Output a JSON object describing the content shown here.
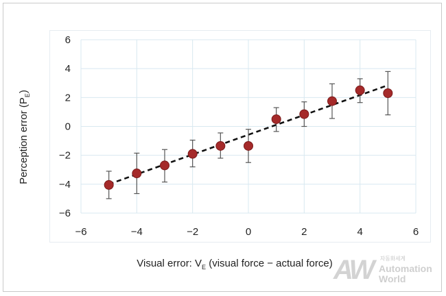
{
  "chart_data": {
    "type": "scatter",
    "xlabel": {
      "main": "Visual error: V",
      "sub": "E",
      "rest": " (visual force − actual force)"
    },
    "ylabel": {
      "main": "Perception error (P",
      "sub": "E",
      "rest": ")"
    },
    "xlim": [
      -6,
      6
    ],
    "ylim": [
      -6,
      6
    ],
    "x_ticks": [
      -6,
      -4,
      -2,
      0,
      2,
      4,
      6
    ],
    "y_ticks": [
      -6,
      -4,
      -2,
      0,
      2,
      4,
      6
    ],
    "x_tick_labels": [
      "−6",
      "−4",
      "−2",
      "0",
      "2",
      "4",
      "6"
    ],
    "y_tick_labels": [
      "−6",
      "−4",
      "−2",
      "0",
      "2",
      "4",
      "6"
    ],
    "grid": true,
    "series": [
      {
        "x": [
          -5,
          -4,
          -3,
          -2,
          -1,
          0,
          1,
          2,
          3,
          4,
          5
        ],
        "y": [
          -4.05,
          -3.25,
          -2.7,
          -1.9,
          -1.35,
          -1.35,
          0.5,
          0.85,
          1.75,
          2.5,
          2.3
        ],
        "error_low": [
          -5.0,
          -4.65,
          -3.85,
          -2.8,
          -2.2,
          -2.5,
          -0.35,
          0.0,
          0.55,
          1.65,
          0.8
        ],
        "error_high": [
          -3.1,
          -1.85,
          -1.6,
          -0.95,
          -0.45,
          -0.2,
          1.3,
          1.7,
          2.95,
          3.3,
          3.8
        ],
        "color": "#a52a2a"
      }
    ],
    "trendline": {
      "x": [
        -5,
        5
      ],
      "y": [
        -4.0,
        2.85
      ],
      "style": "dashed",
      "color": "#111111"
    }
  },
  "watermark": {
    "mark": "AW",
    "small": "자동화세계",
    "line1": "Automation",
    "line2": "World"
  },
  "colors": {
    "grid": "#d8e8f0",
    "marker": "#a52a2a",
    "marker_edge": "#7a1a1a"
  }
}
